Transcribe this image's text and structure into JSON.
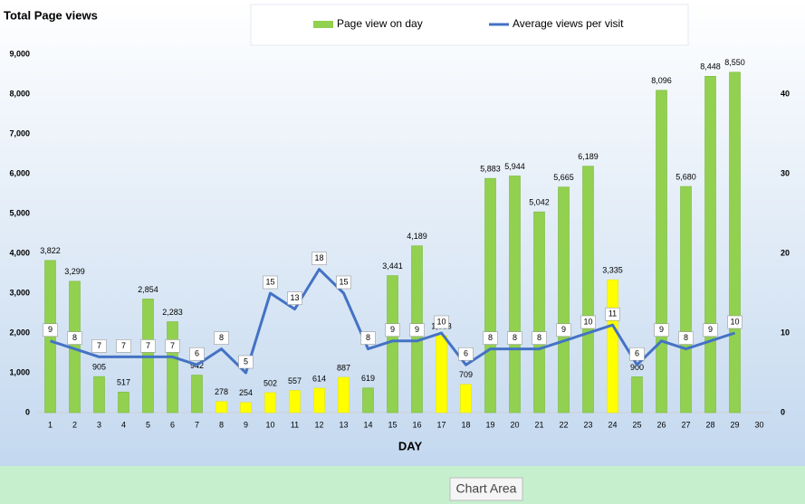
{
  "chart_data": {
    "type": "bar_line",
    "title": "Total Page views",
    "x_label": "DAY",
    "tooltip": "Chart Area",
    "categories": [
      "1",
      "2",
      "3",
      "4",
      "5",
      "6",
      "7",
      "8",
      "9",
      "10",
      "11",
      "12",
      "13",
      "14",
      "15",
      "16",
      "17",
      "18",
      "19",
      "20",
      "21",
      "22",
      "23",
      "24",
      "25",
      "26",
      "27",
      "28",
      "29",
      "30"
    ],
    "series": [
      {
        "name": "Page view on day",
        "type": "bar",
        "color": "#92d050",
        "bar_colors": [
          "#92d050",
          "#92d050",
          "#92d050",
          "#92d050",
          "#92d050",
          "#92d050",
          "#92d050",
          "#ffff00",
          "#ffff00",
          "#ffff00",
          "#ffff00",
          "#ffff00",
          "#ffff00",
          "#92d050",
          "#92d050",
          "#92d050",
          "#ffff00",
          "#ffff00",
          "#92d050",
          "#92d050",
          "#92d050",
          "#92d050",
          "#92d050",
          "#ffff00",
          "#92d050",
          "#92d050",
          "#92d050",
          "#92d050",
          "#92d050",
          null
        ],
        "values": [
          3822,
          3299,
          905,
          517,
          2854,
          2283,
          942,
          278,
          254,
          502,
          557,
          614,
          887,
          619,
          3441,
          4189,
          1933,
          709,
          5883,
          5944,
          5042,
          5665,
          6189,
          3335,
          900,
          8096,
          5680,
          8448,
          8550,
          null
        ],
        "value_labels": [
          "3,822",
          "3,299",
          "905",
          "517",
          "2,854",
          "2,283",
          "942",
          "278",
          "254",
          "502",
          "557",
          "614",
          "887",
          "619",
          "3,441",
          "4,189",
          "1,933",
          "709",
          "5,883",
          "5,944",
          "5,042",
          "5,665",
          "6,189",
          "3,335",
          "900",
          "8,096",
          "5,680",
          "8,448",
          "8,550",
          null
        ]
      },
      {
        "name": "Average views per visit",
        "type": "line",
        "color": "#4472c4",
        "axis": "y2",
        "values": [
          9,
          8,
          7,
          7,
          7,
          7,
          6,
          8,
          5,
          15,
          13,
          18,
          15,
          8,
          9,
          9,
          10,
          6,
          8,
          8,
          8,
          9,
          10,
          11,
          6,
          9,
          8,
          9,
          10,
          null
        ]
      }
    ],
    "ylim": [
      0,
      9000
    ],
    "yticks": [
      0,
      {
        "value": 1000,
        "label": "1,000"
      },
      {
        "value": 2000,
        "label": "2,000"
      },
      {
        "value": 3000,
        "label": "3,000"
      },
      {
        "value": 4000,
        "label": "4,000"
      },
      {
        "value": 5000,
        "label": "5,000"
      },
      {
        "value": 6000,
        "label": "6,000"
      },
      {
        "value": 7000,
        "label": "7,000"
      },
      {
        "value": 8000,
        "label": "8,000"
      },
      {
        "value": 9000,
        "label": "9,000"
      }
    ],
    "y2lim": [
      0,
      45
    ],
    "y2ticks": [
      0,
      10,
      20,
      30,
      40
    ],
    "legend": "top"
  }
}
